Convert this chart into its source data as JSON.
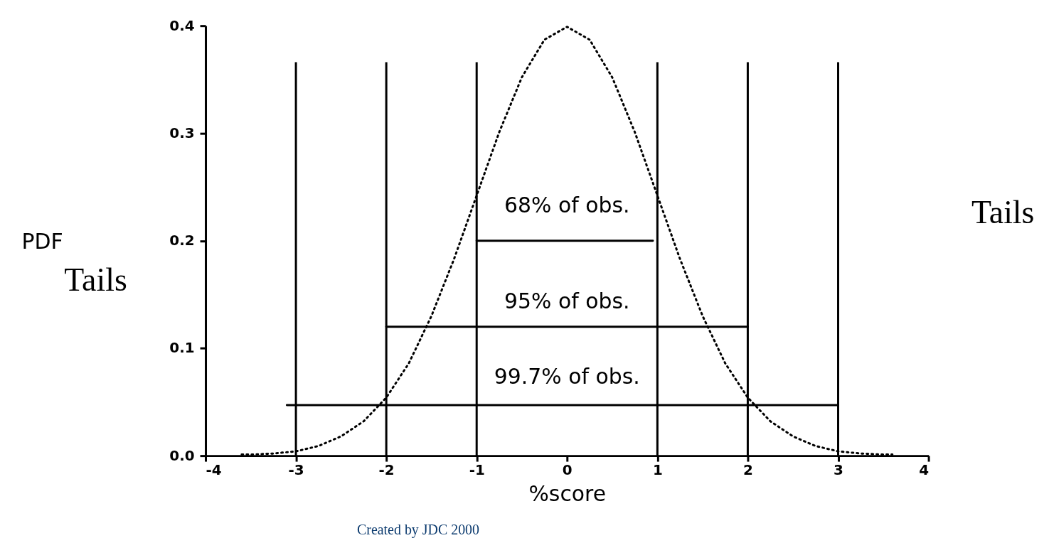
{
  "chart_data": {
    "type": "line",
    "xlabel": "%score",
    "ylabel": "PDF",
    "xlim": [
      -4,
      4
    ],
    "xticks": [
      -4,
      -3,
      -2,
      -1,
      0,
      1,
      2,
      3,
      4
    ],
    "ylim": [
      0,
      0.4
    ],
    "yticks": [
      {
        "value": 0,
        "label": "0.0"
      },
      0.1,
      0.2,
      0.3,
      0.4
    ],
    "grid": false,
    "marker": "none",
    "series": [
      {
        "color": "#000000",
        "line_style": "dotted",
        "x": [
          -3.6,
          -3.5,
          -3.25,
          -3,
          -2.75,
          -2.5,
          -2.25,
          -2,
          -1.75,
          -1.5,
          -1.25,
          -1,
          -0.75,
          -0.5,
          -0.25,
          0,
          0.25,
          0.5,
          0.75,
          1,
          1.25,
          1.5,
          1.75,
          2,
          2.25,
          2.5,
          2.75,
          3,
          3.25,
          3.5,
          3.6
        ],
        "values": [
          0.001,
          0.001,
          0.002,
          0.004,
          0.009,
          0.018,
          0.032,
          0.054,
          0.086,
          0.13,
          0.183,
          0.242,
          0.301,
          0.352,
          0.387,
          0.399,
          0.387,
          0.352,
          0.301,
          0.242,
          0.183,
          0.13,
          0.086,
          0.054,
          0.032,
          0.018,
          0.009,
          0.004,
          0.002,
          0.001,
          0.001
        ]
      },
      {
        "color": "#000000",
        "line_style": "solid",
        "x": [
          -1,
          0.95
        ],
        "values": [
          0.2,
          0.2
        ]
      },
      {
        "color": "#000000",
        "line_style": "solid",
        "x": [
          -2,
          2
        ],
        "values": [
          0.12,
          0.12
        ]
      },
      {
        "color": "#000000",
        "line_style": "solid",
        "x": [
          -3.1,
          3
        ],
        "values": [
          0.047,
          0.047
        ]
      }
    ],
    "ref_lines": [
      {
        "axis": "x",
        "value": -3,
        "color": "#000000"
      },
      {
        "axis": "x",
        "value": -2,
        "color": "#000000"
      },
      {
        "axis": "x",
        "value": -1,
        "color": "#000000"
      },
      {
        "axis": "x",
        "value": 1,
        "color": "#000000"
      },
      {
        "axis": "x",
        "value": 2,
        "color": "#000000"
      },
      {
        "axis": "x",
        "value": 3,
        "color": "#000000"
      }
    ],
    "annotations": [
      "68% of obs.",
      "95% of obs.",
      "99.7% of obs.",
      "Tails",
      "Tails",
      "Created by JDC 2000"
    ]
  }
}
